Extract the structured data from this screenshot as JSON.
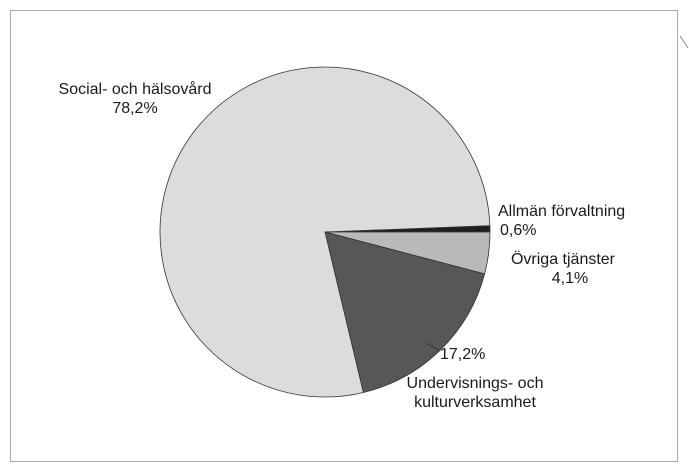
{
  "chart_data": {
    "type": "pie",
    "categories": [
      "Allmän förvaltning",
      "Övriga tjänster",
      "Undervisnings- och kulturverksamhet",
      "Social- och hälsovård"
    ],
    "values": [
      0.6,
      4.1,
      17.2,
      78.2
    ],
    "value_labels": [
      "0,6%",
      "4,1%",
      "17,2%",
      "78,2%"
    ],
    "colors": [
      "#1e1e1e",
      "#b9b9b9",
      "#575757",
      "#dcdcdc"
    ]
  }
}
